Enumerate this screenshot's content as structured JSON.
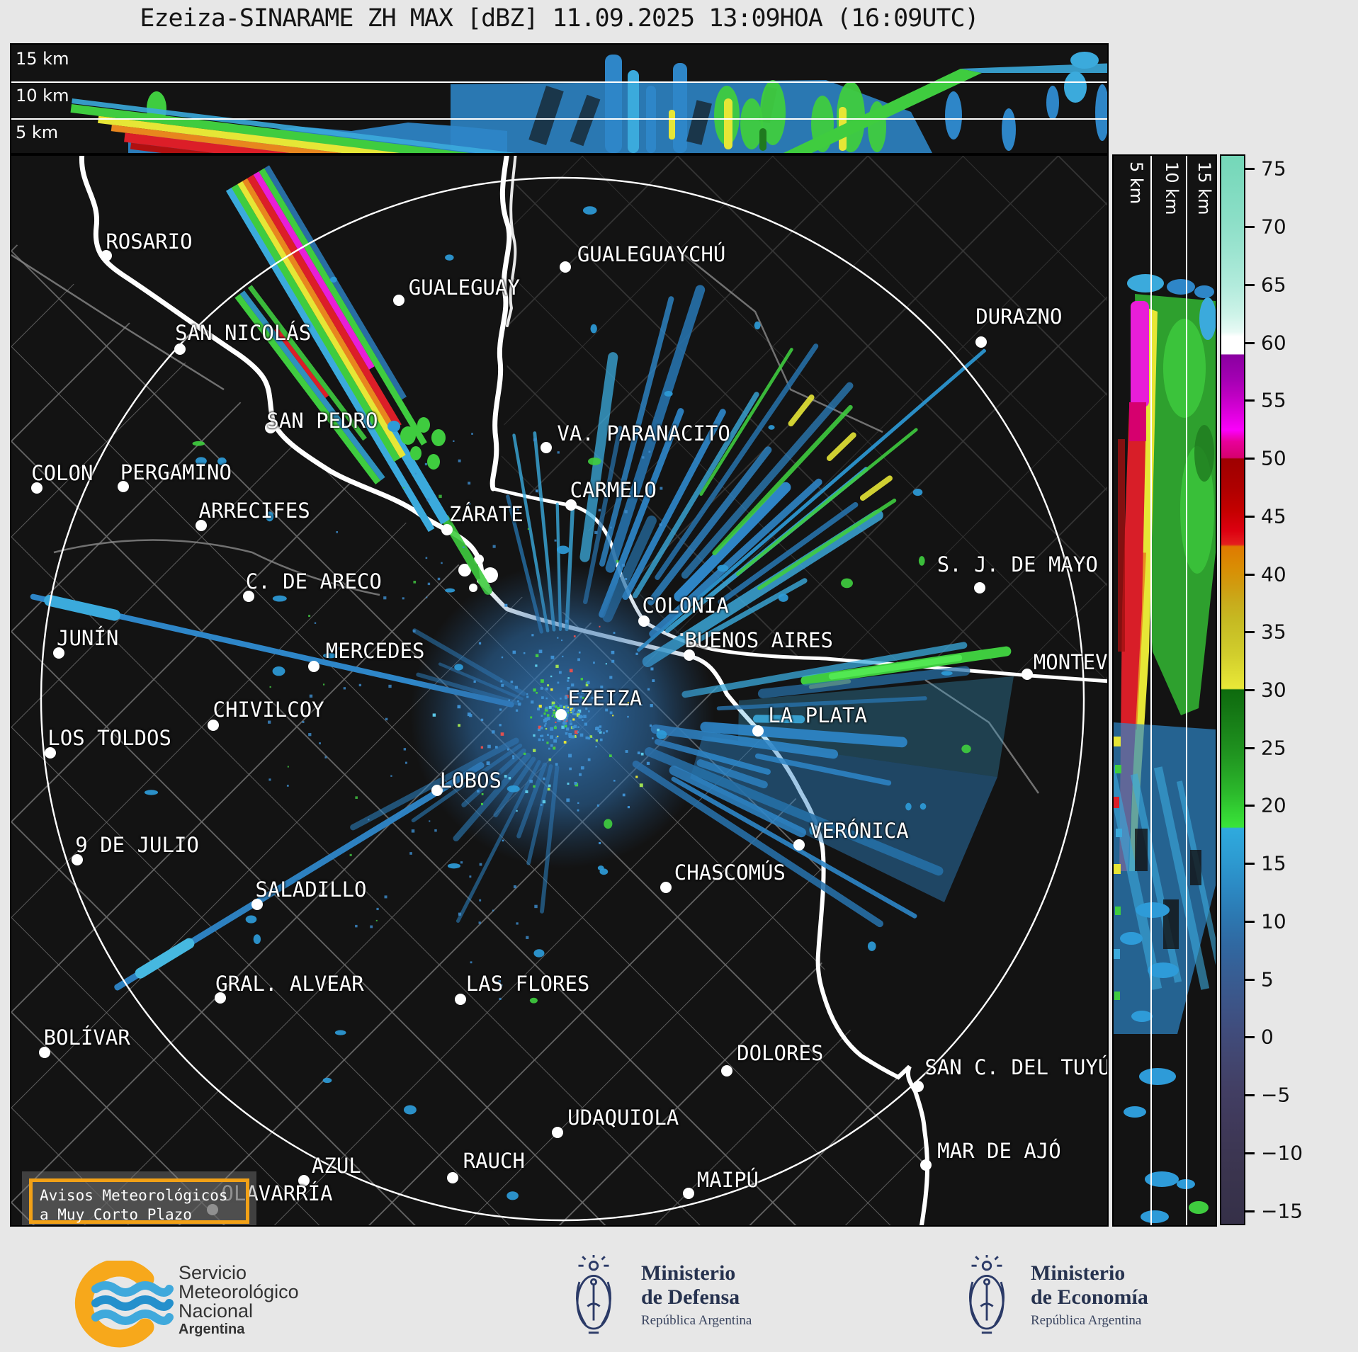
{
  "title": "Ezeiza-SINARAME ZH MAX [dBZ] 11.09.2025 13:09HOA (16:09UTC)",
  "top_panel": {
    "altitude_labels": [
      "15 km",
      "10 km",
      "5 km"
    ]
  },
  "side_panel": {
    "altitude_labels": [
      "5 km",
      "10 km",
      "15 km"
    ]
  },
  "colorbar": {
    "unit": "dBZ",
    "top_value": 76.25,
    "bottom_value": -16.25,
    "ticks": [
      75,
      70,
      65,
      60,
      55,
      50,
      45,
      40,
      35,
      30,
      25,
      20,
      15,
      10,
      5,
      0,
      -5,
      -10,
      -15
    ],
    "stops": [
      [
        76.25,
        "#74D7B8"
      ],
      [
        71,
        "#8ADEC6"
      ],
      [
        68,
        "#9CE4D0"
      ],
      [
        65,
        "#B2EBDC"
      ],
      [
        62.5,
        "#CDF3E8"
      ],
      [
        61,
        "#E8FAF5"
      ],
      [
        60.6,
        "#FFFFFF"
      ],
      [
        59.1,
        "#FFFFFF"
      ],
      [
        59,
        "#8A00A0"
      ],
      [
        57,
        "#A200B2"
      ],
      [
        55.5,
        "#BE00C2"
      ],
      [
        54,
        "#DC00DC"
      ],
      [
        52.5,
        "#FB00FB"
      ],
      [
        51.5,
        "#E8009A"
      ],
      [
        50.1,
        "#D6006E"
      ],
      [
        50,
        "#9E0000"
      ],
      [
        47.5,
        "#AE0000"
      ],
      [
        45.5,
        "#C40000"
      ],
      [
        43.8,
        "#DC0010"
      ],
      [
        42.6,
        "#E41E1E"
      ],
      [
        42.4,
        "#DF7A00"
      ],
      [
        40.5,
        "#D98E04"
      ],
      [
        39,
        "#D09C10"
      ],
      [
        37.5,
        "#C8AC1C"
      ],
      [
        36,
        "#C6BA22"
      ],
      [
        34.5,
        "#CBC428"
      ],
      [
        33,
        "#D2CE2C"
      ],
      [
        31.5,
        "#DEDC32"
      ],
      [
        30.1,
        "#E9E838"
      ],
      [
        30,
        "#0E6B0E"
      ],
      [
        28.5,
        "#137413"
      ],
      [
        27,
        "#188018"
      ],
      [
        25,
        "#1E8F1E"
      ],
      [
        23,
        "#25A325"
      ],
      [
        21,
        "#2CBA2C"
      ],
      [
        19.5,
        "#33D133"
      ],
      [
        18.1,
        "#3AE43A"
      ],
      [
        18,
        "#2FAADE"
      ],
      [
        15.5,
        "#2D9CD2"
      ],
      [
        13,
        "#2C8AC4"
      ],
      [
        10.5,
        "#2C79B2"
      ],
      [
        8,
        "#3069A2"
      ],
      [
        5.5,
        "#375E94"
      ],
      [
        3,
        "#3C5588"
      ],
      [
        0.5,
        "#404C7C"
      ],
      [
        -2,
        "#424670"
      ],
      [
        -4.5,
        "#423F64"
      ],
      [
        -7,
        "#403A5C"
      ],
      [
        -9.5,
        "#3D3754"
      ],
      [
        -12,
        "#3A344E"
      ],
      [
        -16.25,
        "#353048"
      ]
    ]
  },
  "map": {
    "cities": [
      {
        "name": "ROSARIO",
        "dot": [
          8.64,
          9.31
        ],
        "label": [
          12.57,
          7.99
        ]
      },
      {
        "name": "SAN NICOLÁS",
        "dot": [
          15.41,
          18.1
        ],
        "label": [
          21.15,
          16.58
        ]
      },
      {
        "name": "SAN PEDRO",
        "dot": [
          23.66,
          25.43
        ],
        "label": [
          28.37,
          24.77
        ]
      },
      {
        "name": "GUALEGUAY",
        "dot": [
          35.33,
          13.54
        ],
        "label": [
          41.33,
          12.35
        ]
      },
      {
        "name": "GUALEGUAYCHÚ",
        "dot": [
          50.55,
          10.37
        ],
        "label": [
          58.41,
          9.18
        ]
      },
      {
        "name": "VA. PARANACITO",
        "dot": [
          48.81,
          27.28
        ],
        "label": [
          57.7,
          25.96
        ]
      },
      {
        "name": "DURAZNO",
        "dot": [
          88.52,
          17.44
        ],
        "label": [
          91.94,
          15.06
        ]
      },
      {
        "name": "CARMELO",
        "dot": [
          51.06,
          32.63
        ],
        "label": [
          54.93,
          31.24
        ]
      },
      {
        "name": "ZÁRATE",
        "dot": [
          39.78,
          34.94
        ],
        "label": [
          43.33,
          33.49
        ]
      },
      {
        "name": "COLONIA",
        "dot": [
          57.7,
          43.53
        ],
        "label": [
          61.51,
          42.07
        ]
      },
      {
        "name": "S. J. DE MAYO",
        "dot": [
          88.39,
          40.42
        ],
        "label": [
          91.81,
          38.18
        ]
      },
      {
        "name": "COLON",
        "dot": [
          2.32,
          31.04
        ],
        "label": [
          4.64,
          29.66
        ]
      },
      {
        "name": "PERGAMINO",
        "dot": [
          10.19,
          30.91
        ],
        "label": [
          15.02,
          29.59
        ]
      },
      {
        "name": "ARRECIFES",
        "dot": [
          17.34,
          34.54
        ],
        "label": [
          22.18,
          33.16
        ]
      },
      {
        "name": "C. DE ARECO",
        "dot": [
          21.66,
          41.22
        ],
        "label": [
          27.59,
          39.83
        ]
      },
      {
        "name": "JUNÍN",
        "dot": [
          4.32,
          46.5
        ],
        "label": [
          6.96,
          45.11
        ]
      },
      {
        "name": "MERCEDES",
        "dot": [
          27.59,
          47.75
        ],
        "label": [
          33.2,
          46.3
        ]
      },
      {
        "name": "BUENOS AIRES",
        "dot": [
          61.83,
          46.7
        ],
        "label": [
          68.21,
          45.31
        ]
      },
      {
        "name": "EZEIZA",
        "dot": [
          50.16,
          52.25
        ],
        "label": [
          54.16,
          50.73
        ]
      },
      {
        "name": "CHIVILCOY",
        "dot": [
          18.44,
          53.24
        ],
        "label": [
          23.47,
          51.78
        ]
      },
      {
        "name": "LOS TOLDOS",
        "dot": [
          3.55,
          55.81
        ],
        "label": [
          8.96,
          54.43
        ]
      },
      {
        "name": "LA PLATA",
        "dot": [
          68.15,
          53.76
        ],
        "label": [
          73.57,
          52.31
        ]
      },
      {
        "name": "MONTEV",
        "dot": [
          92.71,
          48.48
        ],
        "label": [
          96.65,
          47.36
        ]
      },
      {
        "name": "LOBOS",
        "dot": [
          38.88,
          59.31
        ],
        "label": [
          41.91,
          58.39
        ]
      },
      {
        "name": "VERÓNICA",
        "dot": [
          71.89,
          64.46
        ],
        "label": [
          77.37,
          63.14
        ]
      },
      {
        "name": "CHASCOMÚS",
        "dot": [
          59.7,
          68.43
        ],
        "label": [
          65.57,
          67.04
        ]
      },
      {
        "name": "9 DE JULIO",
        "dot": [
          6.0,
          65.85
        ],
        "label": [
          11.48,
          64.46
        ]
      },
      {
        "name": "SALADILLO",
        "dot": [
          22.44,
          70.01
        ],
        "label": [
          27.34,
          68.63
        ]
      },
      {
        "name": "LAS FLORES",
        "dot": [
          41.01,
          78.86
        ],
        "label": [
          47.13,
          77.41
        ]
      },
      {
        "name": "GRAL. ALVEAR",
        "dot": [
          19.08,
          78.73
        ],
        "label": [
          25.4,
          77.41
        ]
      },
      {
        "name": "BOLÍVAR",
        "dot": [
          3.03,
          83.82
        ],
        "label": [
          6.9,
          82.43
        ]
      },
      {
        "name": "DOLORES",
        "dot": [
          65.31,
          85.54
        ],
        "label": [
          70.15,
          83.88
        ]
      },
      {
        "name": "SAN C. DEL TUYÚ",
        "dot": [
          82.72,
          86.99
        ],
        "label": [
          91.81,
          85.2
        ]
      },
      {
        "name": "UDAQUIOLA",
        "dot": [
          49.84,
          91.35
        ],
        "label": [
          55.83,
          89.96
        ]
      },
      {
        "name": "MAR DE AJÓ",
        "dot": [
          83.43,
          94.39
        ],
        "label": [
          90.14,
          93.07
        ]
      },
      {
        "name": "MAIPÚ",
        "dot": [
          61.77,
          97.03
        ],
        "label": [
          65.38,
          95.77
        ]
      },
      {
        "name": "AZUL",
        "dot": [
          26.69,
          95.84
        ],
        "label": [
          29.66,
          94.45
        ]
      },
      {
        "name": "RAUCH",
        "dot": [
          40.3,
          95.58
        ],
        "label": [
          44.04,
          93.99
        ]
      },
      {
        "name": "OLAVARRÍA",
        "dot": [
          18.37,
          98.55
        ],
        "label": [
          24.24,
          97.03
        ]
      }
    ],
    "warning_box": {
      "line1": "Avisos Meteorológicos",
      "line2": "a Muy Corto Plazo"
    }
  },
  "footer": {
    "smn": {
      "line1": "Servicio",
      "line2": "Meteorológico",
      "line3": "Nacional",
      "line4": "Argentina"
    },
    "defensa": {
      "line1": "Ministerio",
      "line2": "de Defensa",
      "sub": "República Argentina"
    },
    "economia": {
      "line1": "Ministerio",
      "line2": "de Economía",
      "sub": "República Argentina"
    }
  }
}
